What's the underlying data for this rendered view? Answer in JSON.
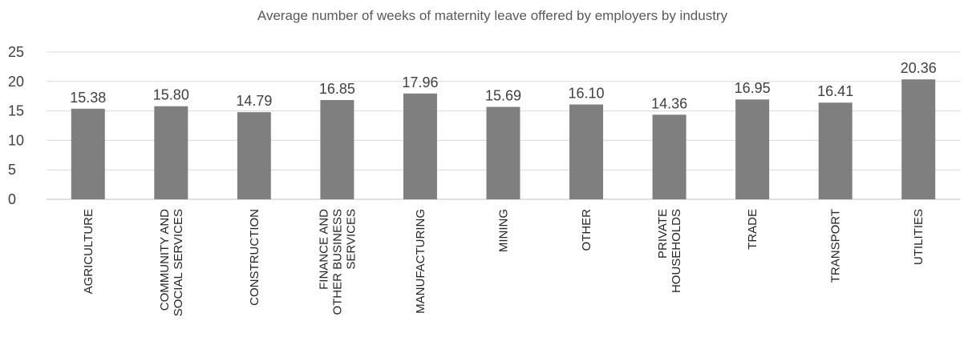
{
  "chart_data": {
    "type": "bar",
    "title": "Average number of weeks of maternity leave offered by employers by industry",
    "xlabel": "",
    "ylabel": "",
    "ylim": [
      0,
      25
    ],
    "yticks": [
      0,
      5,
      10,
      15,
      20,
      25
    ],
    "grid": true,
    "legend": "none",
    "bar_color": "#7f7f7f",
    "categories": [
      [
        "AGRICULTURE"
      ],
      [
        "COMMUNITY AND",
        "SOCIAL SERVICES"
      ],
      [
        "CONSTRUCTION"
      ],
      [
        "FINANCE AND",
        "OTHER BUSINESS",
        "SERVICES"
      ],
      [
        "MANUFACTURING"
      ],
      [
        "MINING"
      ],
      [
        "OTHER"
      ],
      [
        "PRIVATE",
        "HOUSEHOLDS"
      ],
      [
        "TRADE"
      ],
      [
        "TRANSPORT"
      ],
      [
        "UTILITIES"
      ]
    ],
    "values": [
      15.38,
      15.8,
      14.79,
      16.85,
      17.96,
      15.69,
      16.1,
      14.36,
      16.95,
      16.41,
      20.36
    ],
    "data_labels": [
      "15.38",
      "15.80",
      "14.79",
      "16.85",
      "17.96",
      "15.69",
      "16.10",
      "14.36",
      "16.95",
      "16.41",
      "20.36"
    ]
  }
}
